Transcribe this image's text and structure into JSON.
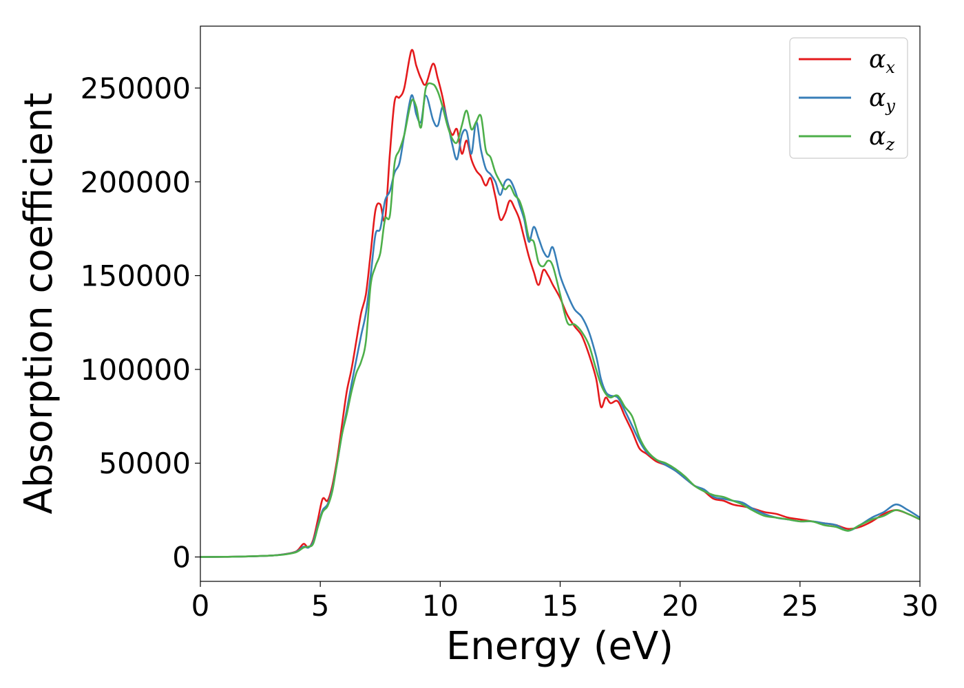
{
  "chart_data": {
    "type": "line",
    "title": "",
    "xlabel": "Energy (eV)",
    "ylabel": "Absorption coefficient",
    "xlim": [
      0,
      30
    ],
    "ylim": [
      -13000,
      283000
    ],
    "xticks": [
      0,
      5,
      10,
      15,
      20,
      25,
      30
    ],
    "xtick_labels": [
      "0",
      "5",
      "10",
      "15",
      "20",
      "25",
      "30"
    ],
    "yticks": [
      0,
      50000,
      100000,
      150000,
      200000,
      250000
    ],
    "ytick_labels": [
      "0",
      "50000",
      "100000",
      "150000",
      "200000",
      "250000"
    ],
    "grid": false,
    "legend_position": "top-right",
    "series": [
      {
        "name": "αx",
        "symbol": "α",
        "subscript": "x",
        "color": "#e41a1c",
        "x": [
          0,
          1,
          2,
          3,
          3.5,
          4,
          4.3,
          4.5,
          4.7,
          4.9,
          5.1,
          5.3,
          5.5,
          5.7,
          5.9,
          6.1,
          6.3,
          6.5,
          6.7,
          6.9,
          7.1,
          7.3,
          7.5,
          7.7,
          7.9,
          8.1,
          8.3,
          8.5,
          8.8,
          9.0,
          9.2,
          9.4,
          9.7,
          9.9,
          10.1,
          10.3,
          10.5,
          10.7,
          10.9,
          11.1,
          11.3,
          11.5,
          11.7,
          11.9,
          12.1,
          12.3,
          12.5,
          12.7,
          12.9,
          13.1,
          13.3,
          13.5,
          13.7,
          13.9,
          14.1,
          14.3,
          14.5,
          14.7,
          15.0,
          15.3,
          15.6,
          15.9,
          16.2,
          16.5,
          16.7,
          16.9,
          17.1,
          17.4,
          17.7,
          18.0,
          18.3,
          18.6,
          19.0,
          19.4,
          19.8,
          20.2,
          20.6,
          21.0,
          21.4,
          21.8,
          22.2,
          22.6,
          23.0,
          23.5,
          24.0,
          24.5,
          25.0,
          25.5,
          26.0,
          26.5,
          27.0,
          27.5,
          28.0,
          28.5,
          29.0,
          29.5,
          30
        ],
        "y": [
          0,
          100,
          300,
          800,
          1500,
          3000,
          7000,
          5000,
          9000,
          20000,
          31000,
          30000,
          38000,
          52000,
          70000,
          88000,
          100000,
          115000,
          130000,
          140000,
          162000,
          185000,
          188000,
          180000,
          215000,
          243000,
          245000,
          250000,
          270000,
          262000,
          255000,
          252000,
          263000,
          255000,
          245000,
          232000,
          225000,
          228000,
          215000,
          222000,
          212000,
          206000,
          203000,
          198000,
          202000,
          192000,
          180000,
          183000,
          190000,
          186000,
          180000,
          170000,
          160000,
          152000,
          145000,
          153000,
          150000,
          145000,
          138000,
          129000,
          123000,
          118000,
          108000,
          95000,
          80000,
          85000,
          82000,
          83000,
          75000,
          67000,
          58000,
          55000,
          51000,
          49000,
          46000,
          42000,
          38000,
          35000,
          31000,
          30000,
          28000,
          27000,
          26000,
          24000,
          23000,
          21000,
          20000,
          19000,
          18000,
          17000,
          15000,
          16000,
          19000,
          23000,
          25000,
          23000,
          20000
        ]
      },
      {
        "name": "αy",
        "symbol": "α",
        "subscript": "y",
        "color": "#377eb8",
        "x": [
          0,
          1,
          2,
          3,
          3.5,
          4,
          4.3,
          4.5,
          4.7,
          4.9,
          5.1,
          5.3,
          5.5,
          5.7,
          5.9,
          6.1,
          6.3,
          6.5,
          6.7,
          6.9,
          7.1,
          7.3,
          7.5,
          7.7,
          7.9,
          8.1,
          8.3,
          8.5,
          8.8,
          9.0,
          9.2,
          9.4,
          9.7,
          9.9,
          10.1,
          10.3,
          10.5,
          10.7,
          10.9,
          11.1,
          11.3,
          11.5,
          11.7,
          11.9,
          12.1,
          12.3,
          12.5,
          12.7,
          12.9,
          13.1,
          13.3,
          13.5,
          13.7,
          13.9,
          14.1,
          14.3,
          14.5,
          14.7,
          15.0,
          15.3,
          15.6,
          15.9,
          16.2,
          16.5,
          16.7,
          16.9,
          17.1,
          17.4,
          17.7,
          18.0,
          18.3,
          18.6,
          19.0,
          19.4,
          19.8,
          20.2,
          20.6,
          21.0,
          21.4,
          21.8,
          22.2,
          22.6,
          23.0,
          23.5,
          24.0,
          24.5,
          25.0,
          25.5,
          26.0,
          26.5,
          27.0,
          27.5,
          28.0,
          28.5,
          29.0,
          29.5,
          30
        ],
        "y": [
          0,
          100,
          300,
          800,
          1400,
          2800,
          5500,
          5000,
          8000,
          17000,
          25000,
          28000,
          36000,
          50000,
          65000,
          78000,
          92000,
          105000,
          118000,
          130000,
          150000,
          172000,
          175000,
          190000,
          195000,
          205000,
          210000,
          225000,
          246000,
          236000,
          232000,
          246000,
          233000,
          230000,
          240000,
          232000,
          220000,
          212000,
          225000,
          227000,
          215000,
          232000,
          217000,
          207000,
          204000,
          200000,
          193000,
          200000,
          201000,
          196000,
          188000,
          180000,
          168000,
          176000,
          170000,
          163000,
          160000,
          165000,
          150000,
          140000,
          132000,
          128000,
          120000,
          107000,
          95000,
          88000,
          86000,
          85000,
          78000,
          70000,
          62000,
          56000,
          52000,
          49000,
          46000,
          42000,
          38000,
          36000,
          32000,
          31000,
          30000,
          29000,
          26000,
          23000,
          21000,
          20000,
          19000,
          19000,
          18000,
          17000,
          14000,
          17000,
          21000,
          24000,
          28000,
          25000,
          21000
        ]
      },
      {
        "name": "αz",
        "symbol": "α",
        "subscript": "z",
        "color": "#4daf4a",
        "x": [
          0,
          1,
          2,
          3,
          3.5,
          4,
          4.3,
          4.5,
          4.7,
          4.9,
          5.1,
          5.3,
          5.5,
          5.7,
          5.9,
          6.1,
          6.3,
          6.5,
          6.7,
          6.9,
          7.1,
          7.3,
          7.5,
          7.7,
          7.9,
          8.1,
          8.3,
          8.5,
          8.8,
          9.0,
          9.2,
          9.4,
          9.7,
          9.9,
          10.1,
          10.3,
          10.5,
          10.7,
          10.9,
          11.1,
          11.3,
          11.5,
          11.7,
          11.9,
          12.1,
          12.3,
          12.5,
          12.7,
          12.9,
          13.1,
          13.3,
          13.5,
          13.7,
          13.9,
          14.1,
          14.3,
          14.5,
          14.7,
          15.0,
          15.3,
          15.6,
          15.9,
          16.2,
          16.5,
          16.7,
          16.9,
          17.1,
          17.4,
          17.7,
          18.0,
          18.3,
          18.6,
          19.0,
          19.4,
          19.8,
          20.2,
          20.6,
          21.0,
          21.4,
          21.8,
          22.2,
          22.6,
          23.0,
          23.5,
          24.0,
          24.5,
          25.0,
          25.5,
          26.0,
          26.5,
          27.0,
          27.5,
          28.0,
          28.5,
          29.0,
          29.5,
          30
        ],
        "y": [
          0,
          100,
          300,
          800,
          1300,
          2600,
          5000,
          5500,
          7000,
          16000,
          24000,
          27000,
          35000,
          50000,
          65000,
          76000,
          88000,
          98000,
          104000,
          115000,
          145000,
          155000,
          162000,
          180000,
          182000,
          210000,
          217000,
          225000,
          243000,
          240000,
          229000,
          250000,
          252000,
          248000,
          240000,
          230000,
          223000,
          221000,
          230000,
          238000,
          228000,
          232000,
          235000,
          217000,
          213000,
          205000,
          200000,
          196000,
          198000,
          193000,
          190000,
          182000,
          170000,
          168000,
          157000,
          155000,
          158000,
          155000,
          140000,
          125000,
          124000,
          120000,
          113000,
          100000,
          92000,
          87000,
          85000,
          86000,
          80000,
          75000,
          64000,
          57000,
          52000,
          50000,
          47000,
          43000,
          38000,
          35000,
          33000,
          32000,
          30000,
          28000,
          25000,
          22000,
          21000,
          20000,
          19000,
          19000,
          17000,
          16000,
          14000,
          17000,
          20000,
          22000,
          25000,
          23000,
          20000
        ]
      }
    ]
  }
}
